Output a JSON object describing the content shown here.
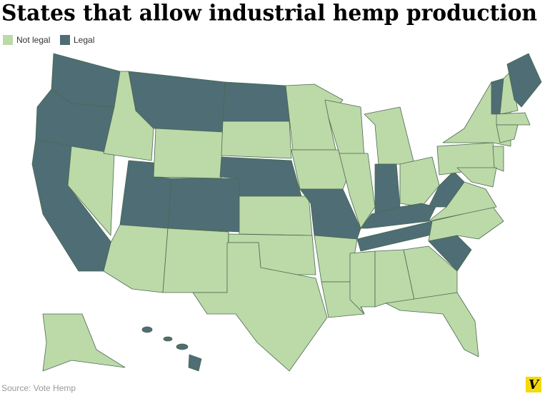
{
  "title": "States that allow industrial hemp production",
  "legend": [
    {
      "label": "Not legal",
      "color": "#bcd9a8"
    },
    {
      "label": "Legal",
      "color": "#4e6d74"
    }
  ],
  "source": "Source: Vote Hemp",
  "logo": "V"
}
